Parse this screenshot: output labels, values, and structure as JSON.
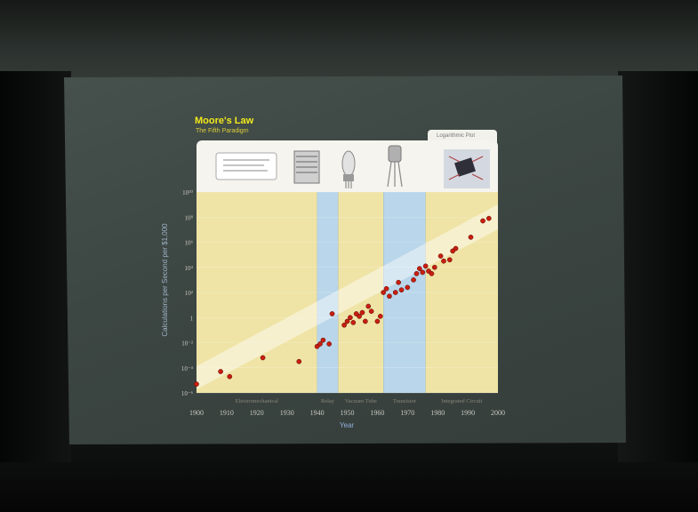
{
  "slide": {
    "title": "Moore's Law",
    "subtitle": "The Fifth Paradigm",
    "tab_label": "Logarithmic Plot"
  },
  "chart_data": {
    "type": "scatter",
    "title": "Moore's Law",
    "subtitle": "The Fifth Paradigm",
    "xlabel": "Year",
    "ylabel": "Calculations per Second per $1,000",
    "xlim": [
      1900,
      2000
    ],
    "x_ticks": [
      1900,
      1910,
      1920,
      1930,
      1940,
      1950,
      1960,
      1970,
      1980,
      1990,
      2000
    ],
    "y_scale": "log",
    "ylim_exponent": [
      -6,
      10
    ],
    "y_tick_labels": [
      "10⁻⁶",
      "10⁻⁴",
      "10⁻²",
      "1",
      "10²",
      "10⁴",
      "10⁶",
      "10⁸",
      "10¹⁰"
    ],
    "y_tick_exponents": [
      -6,
      -4,
      -2,
      0,
      2,
      4,
      6,
      8,
      10
    ],
    "eras": [
      {
        "label": "Electromechanical",
        "from": 1900,
        "to": 1940,
        "color": "#efe4a6"
      },
      {
        "label": "Relay",
        "from": 1940,
        "to": 1947,
        "color": "#b9d6ea"
      },
      {
        "label": "Vacuum Tube",
        "from": 1947,
        "to": 1962,
        "color": "#efe4a6"
      },
      {
        "label": "Transistor",
        "from": 1962,
        "to": 1976,
        "color": "#b9d6ea"
      },
      {
        "label": "Integrated Circuit",
        "from": 1976,
        "to": 2001,
        "color": "#efe4a6"
      }
    ],
    "point_color": "#c81e10",
    "points": [
      {
        "year": 1900,
        "log10": -5.3
      },
      {
        "year": 1908,
        "log10": -4.3
      },
      {
        "year": 1911,
        "log10": -4.7
      },
      {
        "year": 1922,
        "log10": -3.2
      },
      {
        "year": 1934,
        "log10": -3.5
      },
      {
        "year": 1940,
        "log10": -2.3
      },
      {
        "year": 1941,
        "log10": -2.1
      },
      {
        "year": 1942,
        "log10": -1.8
      },
      {
        "year": 1944,
        "log10": -2.1
      },
      {
        "year": 1945,
        "log10": 0.3
      },
      {
        "year": 1949,
        "log10": -0.6
      },
      {
        "year": 1950,
        "log10": -0.3
      },
      {
        "year": 1951,
        "log10": 0.0
      },
      {
        "year": 1952,
        "log10": -0.4
      },
      {
        "year": 1953,
        "log10": 0.3
      },
      {
        "year": 1954,
        "log10": 0.1
      },
      {
        "year": 1955,
        "log10": 0.4
      },
      {
        "year": 1956,
        "log10": -0.3
      },
      {
        "year": 1957,
        "log10": 0.9
      },
      {
        "year": 1958,
        "log10": 0.5
      },
      {
        "year": 1960,
        "log10": -0.3
      },
      {
        "year": 1961,
        "log10": 0.1
      },
      {
        "year": 1962,
        "log10": 2.0
      },
      {
        "year": 1963,
        "log10": 2.3
      },
      {
        "year": 1964,
        "log10": 1.7
      },
      {
        "year": 1966,
        "log10": 2.0
      },
      {
        "year": 1967,
        "log10": 2.8
      },
      {
        "year": 1968,
        "log10": 2.2
      },
      {
        "year": 1970,
        "log10": 2.4
      },
      {
        "year": 1972,
        "log10": 3.0
      },
      {
        "year": 1973,
        "log10": 3.5
      },
      {
        "year": 1974,
        "log10": 3.9
      },
      {
        "year": 1975,
        "log10": 3.6
      },
      {
        "year": 1976,
        "log10": 4.1
      },
      {
        "year": 1977,
        "log10": 3.7
      },
      {
        "year": 1978,
        "log10": 3.5
      },
      {
        "year": 1979,
        "log10": 4.0
      },
      {
        "year": 1981,
        "log10": 4.9
      },
      {
        "year": 1982,
        "log10": 4.5
      },
      {
        "year": 1984,
        "log10": 4.6
      },
      {
        "year": 1985,
        "log10": 5.3
      },
      {
        "year": 1986,
        "log10": 5.5
      },
      {
        "year": 1991,
        "log10": 6.4
      },
      {
        "year": 1995,
        "log10": 7.7
      },
      {
        "year": 1997,
        "log10": 7.9
      }
    ]
  }
}
